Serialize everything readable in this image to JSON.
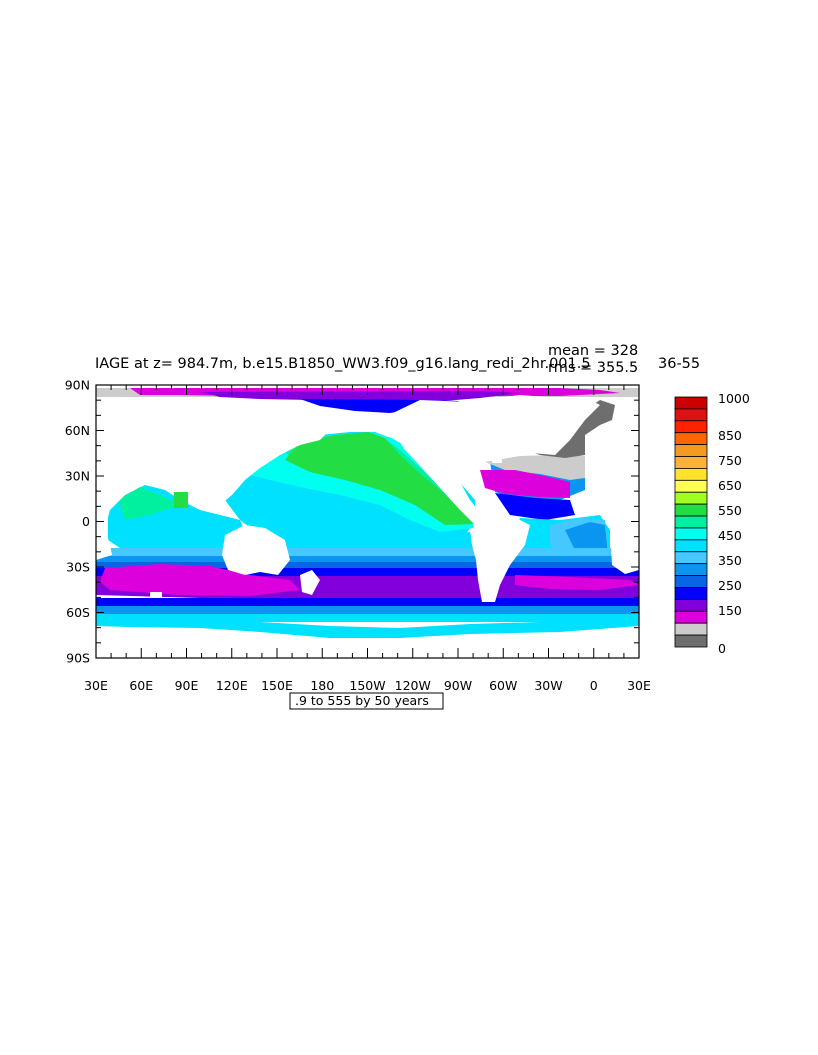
{
  "header": {
    "title": "IAGE at z= 984.7m, b.e15.B1850_WW3.f09_g16.lang_redi_2hr.001.5",
    "years": "36-55",
    "stats_mean": "mean = 328",
    "stats_rms": "rms = 355.5"
  },
  "axes": {
    "lat_ticks": [
      "90N",
      "60N",
      "30N",
      "0",
      "30S",
      "60S",
      "90S"
    ],
    "lon_ticks": [
      "30E",
      "60E",
      "90E",
      "120E",
      "150E",
      "180",
      "150W",
      "120W",
      "90W",
      "60W",
      "30W",
      "0",
      "30E"
    ]
  },
  "contour_info": ".9 to 555 by 50 years",
  "colorbar": {
    "labels": [
      "1000",
      "850",
      "750",
      "650",
      "550",
      "450",
      "350",
      "250",
      "150",
      "0"
    ],
    "colors": [
      "#cc0000",
      "#dd1111",
      "#ff2200",
      "#ff6600",
      "#f49a20",
      "#fbb13c",
      "#ffe22b",
      "#ffff55",
      "#a0ff20",
      "#22dd44",
      "#00f0a0",
      "#00fff0",
      "#00e0ff",
      "#44c8ff",
      "#0a96f0",
      "#0a64e6",
      "#0000ff",
      "#8200dc",
      "#dc00dc",
      "#cccccc",
      "#6e6e6e"
    ]
  },
  "map": {
    "colors": {
      "land": "#ffffff",
      "c0": "#6e6e6e",
      "c50": "#cccccc",
      "c100": "#dc00dc",
      "c150": "#8200dc",
      "c200": "#0000ff",
      "c250": "#0a64e6",
      "c300": "#0a96f0",
      "c350": "#44c8ff",
      "c400": "#00e0ff",
      "c450": "#00fff0",
      "c500": "#00f0a0",
      "c550": "#22dd44"
    }
  }
}
